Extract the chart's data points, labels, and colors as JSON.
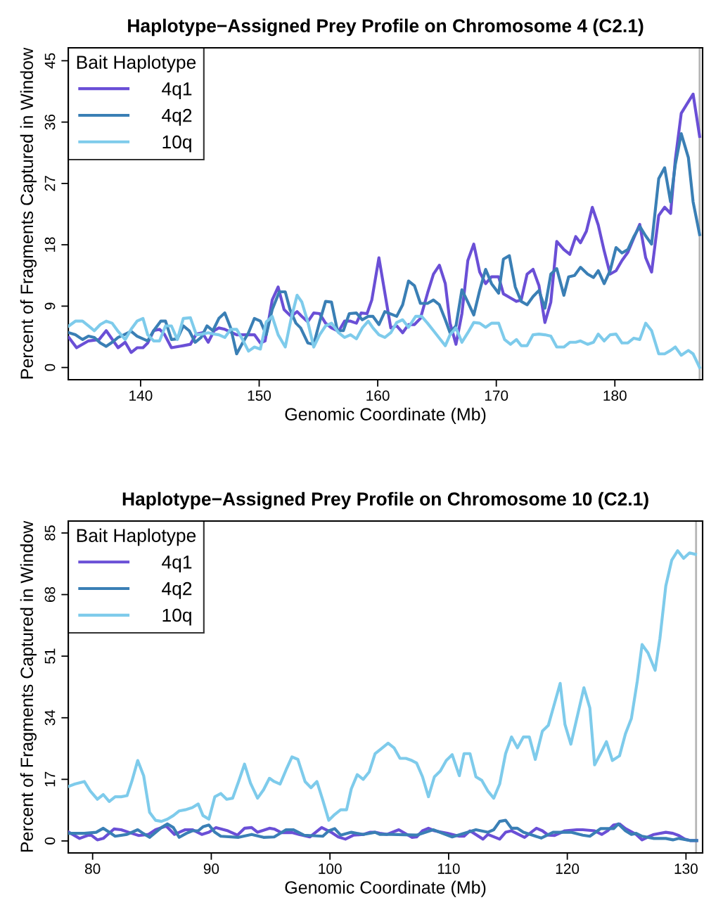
{
  "chart_data": [
    {
      "type": "line",
      "title": "Haplotype−Assigned Prey Profile on Chromosome 4 (C2.1)",
      "xlabel": "Genomic Coordinate (Mb)",
      "ylabel": "Percent of Fragments Captured in Window",
      "legend_title": "Bait Haplotype",
      "legend": "top left",
      "grid": false,
      "line_style": "solid",
      "marker": "none",
      "xlim": [
        133.9,
        187.4
      ],
      "xticks": [
        140,
        150,
        160,
        170,
        180
      ],
      "ylim": [
        -1.8,
        46.9
      ],
      "yticks": [
        0,
        9,
        18,
        27,
        36,
        45
      ],
      "ref_lines": [
        {
          "axis": "x",
          "value": 187.15,
          "color": "#b5b5b5"
        }
      ],
      "series": [
        {
          "name": "4q1",
          "color": "#6a4fd6",
          "x": [
            133.95,
            134.6,
            135.6,
            136.5,
            137.1,
            138.1,
            138.7,
            139.2,
            139.7,
            140.2,
            140.6,
            141.1,
            141.6,
            142.0,
            142.6,
            143.6,
            144.2,
            144.7,
            145.2,
            145.7,
            146.2,
            146.6,
            147.1,
            148.1,
            149.1,
            149.6,
            150.1,
            150.5,
            151.1,
            151.6,
            152.1,
            152.7,
            153.2,
            153.6,
            154.1,
            154.6,
            155.1,
            155.6,
            156.1,
            156.7,
            157.2,
            157.7,
            158.2,
            158.6,
            159.1,
            159.5,
            160.1,
            161.1,
            161.6,
            162.1,
            162.6,
            163.1,
            163.6,
            164.2,
            164.7,
            165.2,
            165.7,
            166.1,
            166.6,
            167.1,
            167.6,
            168.1,
            168.6,
            169.1,
            169.6,
            170.2,
            170.6,
            171.2,
            171.7,
            172.1,
            172.6,
            173.1,
            173.6,
            174.1,
            174.6,
            175.1,
            175.7,
            176.2,
            176.7,
            177.1,
            177.6,
            178.1,
            178.6,
            179.1,
            179.6,
            180.1,
            180.6,
            181.1,
            181.6,
            182.1,
            182.6,
            183.1,
            183.7,
            184.2,
            184.7,
            185.1,
            185.6,
            186.1,
            186.6,
            187.15
          ],
          "values": [
            4.4,
            2.9,
            3.9,
            4.1,
            5.4,
            2.9,
            3.7,
            2.2,
            2.9,
            2.9,
            3.6,
            5.4,
            5.6,
            4.9,
            2.9,
            3.2,
            3.4,
            4.9,
            5.1,
            3.7,
            5.4,
            5.8,
            5.6,
            4.8,
            4.8,
            4.8,
            3.6,
            3.9,
            9.9,
            11.8,
            8.5,
            7.5,
            8.2,
            7.5,
            6.7,
            8.0,
            7.9,
            6.5,
            5.8,
            5.3,
            6.8,
            6.8,
            6.5,
            8.0,
            7.9,
            9.9,
            16.1,
            5.8,
            6.1,
            5.1,
            6.3,
            6.3,
            7.2,
            10.9,
            13.7,
            15.0,
            12.3,
            6.5,
            3.4,
            7.9,
            15.7,
            18.1,
            14.0,
            12.3,
            13.3,
            13.3,
            10.8,
            10.2,
            9.7,
            9.9,
            13.7,
            14.4,
            12.0,
            6.6,
            9.6,
            18.5,
            17.3,
            16.6,
            19.2,
            18.3,
            20.0,
            23.5,
            20.9,
            17.1,
            13.7,
            14.2,
            15.7,
            16.9,
            19.0,
            21.0,
            16.1,
            14.0,
            22.3,
            23.5,
            22.6,
            30.5,
            37.3,
            38.7,
            40.1,
            33.9
          ]
        },
        {
          "name": "4q2",
          "color": "#3a7fb5",
          "x": [
            133.95,
            134.5,
            135.1,
            135.6,
            136.1,
            136.6,
            137.1,
            137.6,
            138.1,
            138.6,
            139.2,
            139.7,
            140.2,
            140.6,
            141.1,
            141.7,
            142.1,
            142.6,
            143.1,
            143.6,
            144.1,
            144.6,
            145.1,
            145.6,
            146.1,
            146.6,
            147.1,
            147.6,
            148.1,
            148.6,
            149.1,
            149.6,
            150.1,
            150.6,
            151.1,
            151.7,
            152.2,
            152.6,
            153.1,
            153.5,
            154.1,
            154.6,
            155.1,
            155.6,
            156.1,
            156.6,
            157.1,
            157.6,
            158.2,
            158.7,
            159.2,
            159.6,
            160.1,
            160.6,
            161.6,
            162.1,
            162.6,
            163.1,
            163.6,
            164.2,
            164.7,
            165.2,
            165.7,
            166.1,
            166.6,
            167.1,
            167.6,
            168.1,
            168.6,
            169.1,
            169.6,
            170.2,
            170.6,
            171.1,
            171.6,
            172.1,
            172.6,
            173.1,
            173.6,
            174.1,
            174.6,
            175.1,
            175.7,
            176.1,
            176.6,
            177.1,
            177.7,
            178.2,
            178.6,
            179.1,
            179.6,
            180.1,
            180.6,
            181.1,
            181.6,
            182.1,
            182.6,
            183.1,
            183.7,
            184.2,
            184.7,
            185.1,
            185.6,
            186.2,
            186.6,
            187.15
          ],
          "values": [
            5.1,
            4.8,
            4.1,
            4.6,
            4.4,
            3.6,
            3.1,
            3.7,
            4.4,
            4.8,
            5.3,
            4.6,
            4.2,
            3.9,
            5.4,
            6.8,
            6.8,
            4.1,
            4.2,
            6.1,
            5.4,
            3.7,
            4.4,
            6.1,
            5.4,
            7.2,
            8.0,
            5.8,
            2.0,
            3.6,
            5.1,
            7.2,
            6.8,
            4.8,
            8.5,
            11.1,
            11.1,
            8.5,
            6.5,
            5.8,
            3.6,
            3.4,
            6.7,
            9.7,
            9.6,
            5.4,
            5.4,
            7.9,
            8.0,
            7.0,
            7.5,
            7.5,
            6.3,
            8.2,
            7.5,
            9.2,
            12.7,
            12.0,
            9.4,
            9.4,
            9.9,
            9.2,
            7.0,
            5.1,
            6.1,
            11.4,
            9.6,
            7.7,
            11.3,
            14.4,
            12.3,
            10.9,
            15.9,
            16.4,
            11.8,
            9.7,
            9.2,
            10.4,
            11.3,
            8.7,
            13.7,
            14.5,
            10.6,
            13.3,
            13.5,
            14.7,
            13.7,
            13.2,
            14.2,
            12.3,
            14.2,
            17.6,
            16.8,
            17.3,
            19.2,
            20.7,
            19.3,
            18.1,
            27.7,
            29.3,
            24.3,
            29.8,
            34.3,
            30.8,
            24.3,
            19.5
          ]
        },
        {
          "name": "10q",
          "color": "#7ecbeb",
          "x": [
            133.95,
            134.5,
            135.1,
            135.6,
            136.1,
            136.6,
            137.1,
            137.6,
            138.1,
            138.7,
            139.2,
            139.7,
            140.2,
            140.6,
            141.1,
            141.6,
            142.1,
            142.6,
            143.1,
            143.6,
            144.2,
            144.7,
            145.2,
            145.7,
            146.2,
            146.6,
            147.1,
            147.6,
            148.1,
            148.6,
            149.1,
            149.6,
            150.1,
            150.6,
            151.1,
            151.6,
            152.2,
            152.7,
            153.2,
            153.6,
            154.1,
            154.6,
            155.1,
            155.6,
            156.1,
            156.7,
            157.2,
            157.7,
            158.2,
            158.7,
            159.2,
            159.6,
            160.1,
            160.6,
            161.1,
            161.6,
            162.1,
            162.6,
            163.2,
            163.7,
            164.2,
            164.7,
            165.2,
            165.7,
            166.1,
            166.6,
            167.1,
            167.6,
            168.1,
            168.6,
            169.1,
            169.6,
            170.2,
            170.7,
            171.2,
            171.7,
            172.1,
            172.6,
            173.1,
            173.6,
            174.1,
            174.6,
            175.1,
            175.7,
            176.2,
            176.7,
            177.1,
            177.7,
            178.2,
            178.6,
            179.1,
            179.6,
            180.1,
            180.6,
            181.1,
            181.6,
            182.1,
            182.6,
            183.1,
            183.7,
            184.2,
            184.7,
            185.1,
            185.6,
            186.2,
            186.6,
            187.15
          ],
          "values": [
            6.1,
            6.8,
            6.8,
            6.1,
            5.4,
            6.3,
            6.8,
            6.5,
            5.3,
            4.1,
            5.6,
            6.8,
            7.2,
            4.8,
            3.9,
            3.9,
            6.1,
            6.1,
            4.1,
            7.2,
            7.3,
            4.8,
            4.9,
            5.1,
            4.9,
            4.8,
            4.4,
            5.6,
            5.6,
            4.1,
            2.4,
            3.0,
            2.7,
            6.7,
            7.5,
            4.8,
            3.0,
            7.2,
            10.6,
            9.6,
            6.7,
            3.0,
            4.8,
            6.1,
            6.5,
            5.1,
            4.4,
            4.8,
            4.2,
            5.8,
            6.8,
            5.8,
            4.8,
            4.4,
            5.1,
            6.6,
            7.0,
            5.9,
            7.5,
            7.5,
            6.5,
            5.4,
            4.3,
            3.2,
            4.8,
            5.8,
            3.7,
            5.1,
            6.6,
            6.5,
            5.9,
            6.5,
            6.5,
            4.1,
            3.4,
            4.1,
            3.2,
            3.2,
            4.8,
            4.9,
            4.8,
            4.6,
            3.0,
            3.0,
            3.7,
            3.7,
            3.9,
            3.4,
            3.7,
            4.9,
            3.9,
            4.8,
            4.9,
            3.6,
            3.6,
            4.3,
            4.1,
            6.5,
            5.4,
            2.0,
            2.0,
            2.5,
            3.0,
            1.8,
            2.5,
            2.0,
            0.0
          ]
        }
      ]
    },
    {
      "type": "line",
      "title": "Haplotype−Assigned Prey Profile on Chromosome 10 (C2.1)",
      "xlabel": "Genomic Coordinate (Mb)",
      "ylabel": "Percent of Fragments Captured in Window",
      "legend_title": "Bait Haplotype",
      "legend": "top left",
      "grid": false,
      "line_style": "solid",
      "marker": "none",
      "xlim": [
        77.95,
        131.4
      ],
      "xticks": [
        80,
        90,
        100,
        110,
        120,
        130
      ],
      "ylim": [
        -3.3,
        88.3
      ],
      "yticks": [
        0,
        17,
        34,
        51,
        68,
        85
      ],
      "ref_lines": [
        {
          "axis": "x",
          "value": 130.85,
          "color": "#b5b5b5"
        }
      ],
      "series": [
        {
          "name": "4q1",
          "color": "#6a4fd6",
          "x": [
            78.0,
            78.9,
            79.8,
            80.4,
            80.9,
            81.8,
            82.4,
            83.3,
            83.9,
            84.7,
            85.3,
            86.2,
            86.9,
            87.8,
            88.4,
            89.2,
            89.8,
            90.4,
            91.4,
            92.2,
            92.8,
            93.4,
            93.9,
            94.9,
            95.3,
            95.9,
            96.8,
            97.4,
            98.3,
            99.3,
            100.1,
            100.7,
            101.3,
            102.0,
            102.8,
            103.4,
            103.8,
            104.2,
            104.8,
            105.8,
            106.9,
            107.3,
            107.8,
            108.3,
            108.8,
            109.9,
            110.9,
            111.3,
            111.8,
            112.9,
            113.3,
            114.3,
            114.8,
            115.3,
            116.4,
            117.4,
            117.9,
            118.4,
            118.9,
            119.8,
            120.8,
            121.3,
            122.3,
            122.9,
            123.4,
            123.9,
            124.4,
            124.9,
            125.8,
            126.3,
            126.8,
            127.3,
            128.3,
            128.9,
            129.4,
            129.9,
            130.4,
            130.9
          ],
          "values": [
            2.4,
            0.7,
            1.8,
            0.3,
            0.7,
            3.3,
            3.1,
            2.1,
            1.5,
            1.8,
            3.1,
            4.1,
            1.8,
            3.1,
            3.1,
            1.8,
            2.4,
            3.7,
            2.8,
            1.6,
            3.5,
            3.7,
            2.4,
            3.5,
            3.3,
            2.3,
            2.3,
            1.8,
            1.1,
            3.7,
            2.4,
            1.1,
            0.5,
            1.6,
            1.8,
            2.4,
            2.4,
            2.1,
            1.8,
            3.1,
            1.0,
            1.1,
            2.8,
            3.5,
            2.8,
            2.1,
            1.3,
            1.3,
            2.8,
            0.5,
            1.8,
            0.5,
            2.4,
            2.8,
            1.0,
            3.5,
            2.8,
            1.6,
            1.5,
            2.8,
            3.1,
            3.1,
            2.8,
            1.8,
            2.8,
            4.4,
            4.7,
            3.4,
            1.8,
            0.3,
            1.1,
            1.8,
            2.4,
            2.1,
            1.5,
            0.5,
            0.1,
            0.1
          ]
        },
        {
          "name": "4q2",
          "color": "#3a7fb5",
          "x": [
            78.0,
            79.3,
            80.3,
            80.9,
            81.4,
            81.9,
            82.9,
            83.8,
            84.3,
            84.8,
            85.8,
            86.3,
            86.8,
            87.3,
            87.9,
            88.4,
            88.9,
            89.3,
            89.8,
            90.3,
            90.8,
            92.3,
            93.4,
            94.4,
            95.3,
            96.3,
            96.9,
            97.8,
            99.4,
            99.9,
            100.4,
            100.9,
            101.8,
            102.8,
            103.8,
            104.2,
            105.2,
            107.3,
            108.7,
            110.3,
            112.3,
            113.3,
            113.8,
            114.3,
            114.8,
            115.3,
            115.8,
            116.3,
            117.8,
            118.8,
            120.3,
            121.3,
            121.9,
            122.8,
            123.9,
            124.3,
            124.9,
            125.4,
            125.8,
            126.3,
            127.3,
            128.3,
            128.9,
            129.4,
            130.4,
            130.9
          ],
          "values": [
            2.1,
            2.1,
            2.4,
            3.5,
            2.4,
            1.3,
            1.8,
            3.1,
            2.0,
            1.0,
            3.7,
            4.7,
            3.7,
            1.0,
            2.1,
            2.8,
            2.8,
            3.9,
            4.4,
            2.4,
            1.3,
            1.0,
            1.8,
            1.0,
            1.1,
            3.1,
            3.1,
            1.6,
            1.3,
            2.8,
            3.4,
            1.6,
            2.4,
            1.8,
            2.4,
            1.8,
            1.8,
            1.6,
            3.1,
            1.1,
            3.1,
            2.4,
            3.1,
            5.4,
            5.7,
            3.5,
            3.5,
            2.4,
            0.8,
            2.4,
            2.4,
            1.6,
            1.3,
            3.4,
            3.4,
            4.7,
            2.8,
            1.8,
            2.1,
            1.3,
            0.7,
            0.7,
            0.3,
            0.7,
            0.1,
            0.1
          ]
        },
        {
          "name": "10q",
          "color": "#7ecbeb",
          "x": [
            78.0,
            78.5,
            79.3,
            79.8,
            80.4,
            80.9,
            81.4,
            81.9,
            82.4,
            82.9,
            83.3,
            83.8,
            84.3,
            84.8,
            85.3,
            85.8,
            86.3,
            86.8,
            87.3,
            87.8,
            88.4,
            88.9,
            89.3,
            89.8,
            90.3,
            90.8,
            91.3,
            91.8,
            92.3,
            92.8,
            93.3,
            93.9,
            94.4,
            94.9,
            95.3,
            95.8,
            96.3,
            96.8,
            97.3,
            97.9,
            98.4,
            98.9,
            99.4,
            99.9,
            100.4,
            100.9,
            101.4,
            101.8,
            102.3,
            102.8,
            103.3,
            103.8,
            104.3,
            104.9,
            105.4,
            105.9,
            106.4,
            106.9,
            107.3,
            107.8,
            108.3,
            108.8,
            109.3,
            109.8,
            110.3,
            110.9,
            111.3,
            111.8,
            112.3,
            112.8,
            113.3,
            113.8,
            114.3,
            114.8,
            115.3,
            115.8,
            116.3,
            116.8,
            117.3,
            117.9,
            118.4,
            118.9,
            119.4,
            119.8,
            120.3,
            120.8,
            121.4,
            121.9,
            122.3,
            122.8,
            123.3,
            123.8,
            124.4,
            124.9,
            125.4,
            125.9,
            126.3,
            126.8,
            127.4,
            127.8,
            128.3,
            128.8,
            129.3,
            129.8,
            130.3,
            130.8
          ],
          "values": [
            15.1,
            15.7,
            16.4,
            13.8,
            11.5,
            12.8,
            10.9,
            12.2,
            12.2,
            12.5,
            16.4,
            22.2,
            18.0,
            7.9,
            5.7,
            5.4,
            6.0,
            7.0,
            8.3,
            8.6,
            9.2,
            10.2,
            7.0,
            6.0,
            12.2,
            13.1,
            11.5,
            11.8,
            16.4,
            21.2,
            16.0,
            11.8,
            14.1,
            17.3,
            16.4,
            15.7,
            19.6,
            23.2,
            22.5,
            16.4,
            14.7,
            16.4,
            11.2,
            5.7,
            7.3,
            8.6,
            8.6,
            14.4,
            18.3,
            17.0,
            19.0,
            24.1,
            25.4,
            27.0,
            25.7,
            22.8,
            22.8,
            22.2,
            21.5,
            17.7,
            12.2,
            17.7,
            19.3,
            22.2,
            23.8,
            18.0,
            24.1,
            24.1,
            17.7,
            16.7,
            13.8,
            11.8,
            15.7,
            24.1,
            28.7,
            25.7,
            28.7,
            28.7,
            22.5,
            30.3,
            31.9,
            37.7,
            43.5,
            32.2,
            26.7,
            33.8,
            42.3,
            36.7,
            21.0,
            24.1,
            27.4,
            22.2,
            23.5,
            29.6,
            33.8,
            44.2,
            54.2,
            51.9,
            47.1,
            55.8,
            70.4,
            77.5,
            80.1,
            78.0,
            79.5,
            79.1
          ]
        }
      ]
    }
  ]
}
